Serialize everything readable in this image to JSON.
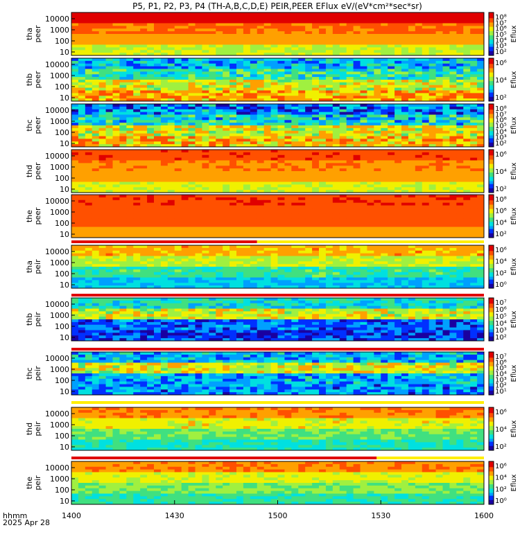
{
  "title": "P5, P1, P2, P3, P4 (TH-A,B,C,D,E) PEIR,PEER EFlux eV/(eV*cm²*sec*sr)",
  "footer": {
    "left_line1": "hhmm",
    "left_line2": "2025 Apr 28"
  },
  "colors": {
    "spectrum": [
      "#1a00a0",
      "#0030ff",
      "#00a0ff",
      "#00e0e0",
      "#40e080",
      "#a0f040",
      "#f0f000",
      "#ffa000",
      "#ff5000",
      "#e00000"
    ],
    "stripe_red": "#e00000",
    "stripe_yellow": "#ffee00"
  },
  "chart_data": {
    "type": "heatmap",
    "time_axis": {
      "ticks": [
        "1400",
        "1430",
        "1500",
        "1530",
        "1600"
      ],
      "range": [
        "1400",
        "1600"
      ]
    },
    "panels": [
      {
        "id": "tha-peer",
        "ylabel": [
          "tha",
          "peer"
        ],
        "yticks": [
          "10000",
          "1000",
          "100",
          "10"
        ],
        "cbar_label": "Eflux",
        "cbar_ticks": [
          "10⁸",
          "10⁷",
          "10⁶",
          "10⁵",
          "10⁴",
          "10³",
          "10²"
        ],
        "base_level": 0.72,
        "bands": [
          0.35,
          0.15,
          0.05,
          -0.2
        ],
        "noise": 0.05
      },
      {
        "id": "thb-peer",
        "ylabel": [
          "thb",
          "peer"
        ],
        "yticks": [
          "10000",
          "1000",
          "100",
          "10"
        ],
        "cbar_label": "Eflux",
        "cbar_ticks": [
          "10⁶",
          "10⁴",
          "10²"
        ],
        "base_level": 0.35,
        "bands": [
          -0.1,
          0.1,
          0.45,
          0.65
        ],
        "noise": 0.3
      },
      {
        "id": "thc-peer",
        "ylabel": [
          "thc",
          "peer"
        ],
        "yticks": [
          "10000",
          "1000",
          "100",
          "10"
        ],
        "cbar_label": "Eflux",
        "cbar_ticks": [
          "10⁸",
          "10⁷",
          "10⁶",
          "10⁵",
          "10⁴",
          "10³",
          "10²"
        ],
        "base_level": 0.35,
        "bands": [
          -0.2,
          0.0,
          0.45,
          0.6
        ],
        "noise": 0.35
      },
      {
        "id": "thd-peer",
        "ylabel": [
          "thd",
          "peer"
        ],
        "yticks": [
          "10000",
          "1000",
          "100",
          "10"
        ],
        "cbar_label": "Eflux",
        "cbar_ticks": [
          "10⁶",
          "10⁴",
          "10²"
        ],
        "base_level": 0.7,
        "bands": [
          0.3,
          0.15,
          0.05,
          -0.15
        ],
        "noise": 0.05
      },
      {
        "id": "the-peer",
        "ylabel": [
          "the",
          "peer"
        ],
        "yticks": [
          "10000",
          "1000",
          "100",
          "10"
        ],
        "cbar_label": "Eflux",
        "cbar_ticks": [
          "10⁸",
          "10⁶",
          "10⁴",
          "10²"
        ],
        "base_level": 0.8,
        "bands": [
          0.15,
          0.1,
          0.05,
          -0.05
        ],
        "noise": 0.04
      },
      {
        "id": "tha-peir",
        "ylabel": [
          "tha",
          "peir"
        ],
        "yticks": [
          "10000",
          "1000",
          "100",
          "10"
        ],
        "cbar_label": "Eflux",
        "cbar_ticks": [
          "10⁶",
          "10⁴",
          "10²",
          "10⁰"
        ],
        "base_level": 0.55,
        "bands": [
          0.3,
          0.05,
          -0.2,
          -0.4
        ],
        "noise": 0.15
      },
      {
        "id": "thb-peir",
        "ylabel": [
          "thb",
          "peir"
        ],
        "yticks": [
          "10000",
          "1000",
          "100",
          "10"
        ],
        "cbar_label": "Eflux",
        "cbar_ticks": [
          "10⁷",
          "10⁶",
          "10⁵",
          "10⁴",
          "10³",
          "10²"
        ],
        "base_level": 0.25,
        "bands": [
          0.2,
          0.6,
          -0.1,
          -0.15
        ],
        "noise": 0.25
      },
      {
        "id": "thc-peir",
        "ylabel": [
          "thc",
          "peir"
        ],
        "yticks": [
          "10000",
          "1000",
          "100",
          "10"
        ],
        "cbar_label": "Eflux",
        "cbar_ticks": [
          "10⁷",
          "10⁶",
          "10⁵",
          "10⁴",
          "10³",
          "10²",
          "10¹"
        ],
        "base_level": 0.3,
        "bands": [
          0.0,
          0.55,
          -0.05,
          -0.1
        ],
        "noise": 0.3
      },
      {
        "id": "thd-peir",
        "ylabel": [
          "thd",
          "peir"
        ],
        "yticks": [
          "10000",
          "1000",
          "100",
          "10"
        ],
        "cbar_label": "Eflux",
        "cbar_ticks": [
          "10⁶",
          "10⁴",
          "10²"
        ],
        "base_level": 0.6,
        "bands": [
          0.3,
          0.05,
          -0.2,
          -0.35
        ],
        "noise": 0.15
      },
      {
        "id": "the-peir",
        "ylabel": [
          "the",
          "peir"
        ],
        "yticks": [
          "10000",
          "1000",
          "100",
          "10"
        ],
        "cbar_label": "Eflux",
        "cbar_ticks": [
          "10⁶",
          "10⁴",
          "10²",
          "10⁰"
        ],
        "base_level": 0.6,
        "bands": [
          0.3,
          0.05,
          -0.15,
          -0.3
        ],
        "noise": 0.12
      }
    ]
  }
}
